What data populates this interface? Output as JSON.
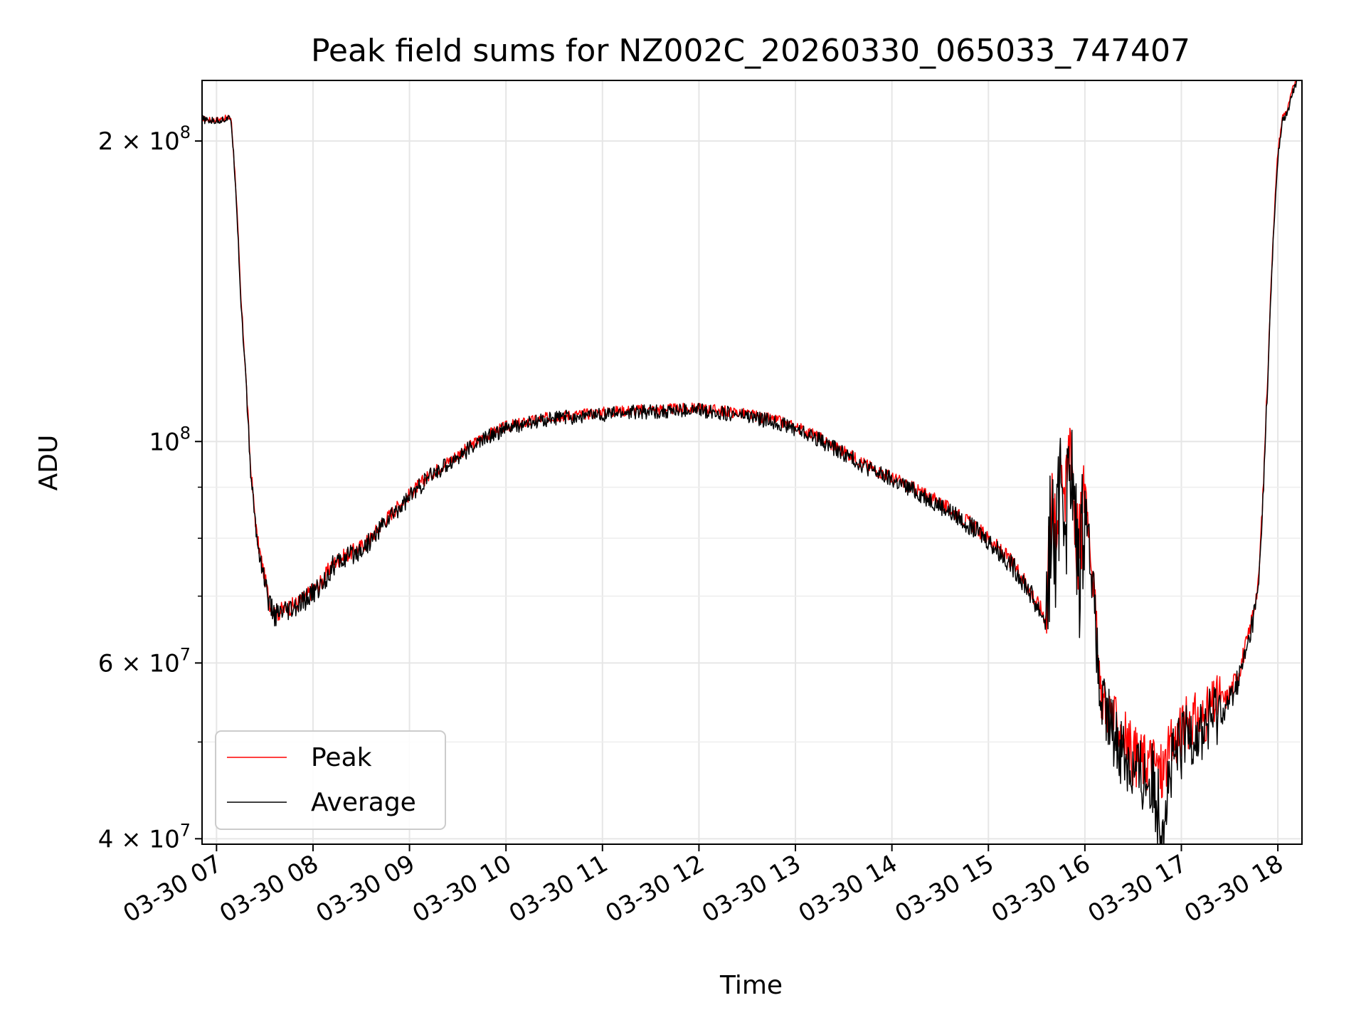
{
  "chart_data": {
    "type": "line",
    "title": "Peak field sums for NZ002C_20260330_065033_747407",
    "xlabel": "Time",
    "ylabel": "ADU",
    "yscale": "log",
    "ylim": [
      39500000,
      230000000
    ],
    "xlim_hours": [
      6.85,
      18.25
    ],
    "grid": true,
    "legend_position": "lower-left",
    "x_ticks": [
      {
        "value": 7,
        "label": "03-30 07"
      },
      {
        "value": 8,
        "label": "03-30 08"
      },
      {
        "value": 9,
        "label": "03-30 09"
      },
      {
        "value": 10,
        "label": "03-30 10"
      },
      {
        "value": 11,
        "label": "03-30 11"
      },
      {
        "value": 12,
        "label": "03-30 12"
      },
      {
        "value": 13,
        "label": "03-30 13"
      },
      {
        "value": 14,
        "label": "03-30 14"
      },
      {
        "value": 15,
        "label": "03-30 15"
      },
      {
        "value": 16,
        "label": "03-30 16"
      },
      {
        "value": 17,
        "label": "03-30 17"
      },
      {
        "value": 18,
        "label": "03-30 18"
      }
    ],
    "y_major_ticks": [
      {
        "value": 40000000,
        "base": "4 × 10",
        "exp": "7"
      },
      {
        "value": 60000000,
        "base": "6 × 10",
        "exp": "7"
      },
      {
        "value": 100000000,
        "base": "10",
        "exp": "8"
      },
      {
        "value": 200000000,
        "base": "2 × 10",
        "exp": "8"
      }
    ],
    "y_minor_ticks": [
      50000000,
      70000000,
      80000000,
      90000000
    ],
    "series": [
      {
        "name": "Peak",
        "color": "#ff0000",
        "jitter": 1400000,
        "x": [
          6.85,
          6.9,
          7.0,
          7.1,
          7.15,
          7.2,
          7.25,
          7.3,
          7.35,
          7.38,
          7.42,
          7.5,
          7.55,
          7.6,
          7.65,
          7.7,
          7.8,
          7.9,
          8.0,
          8.1,
          8.2,
          8.3,
          8.35,
          8.5,
          8.6,
          8.7,
          8.8,
          9.0,
          9.2,
          9.4,
          9.6,
          9.8,
          10.0,
          10.2,
          10.5,
          10.8,
          11.0,
          11.3,
          11.6,
          11.8,
          12.0,
          12.2,
          12.5,
          12.8,
          13.0,
          13.2,
          13.4,
          13.6,
          13.8,
          14.0,
          14.2,
          14.4,
          14.6,
          14.8,
          15.0,
          15.2,
          15.3,
          15.4,
          15.5,
          15.6,
          15.65,
          15.7,
          15.75,
          15.8,
          15.85,
          15.9,
          15.95,
          16.0,
          16.05,
          16.1,
          16.15,
          16.2,
          16.3,
          16.4,
          16.5,
          16.6,
          16.7,
          16.8,
          16.9,
          17.0,
          17.1,
          17.2,
          17.3,
          17.4,
          17.45,
          17.5,
          17.6,
          17.7,
          17.8,
          17.85,
          17.9,
          17.95,
          18.0,
          18.05,
          18.1,
          18.15,
          18.2
        ],
        "y": [
          211000000,
          210000000,
          210000000,
          211000000,
          211000000,
          180000000,
          140000000,
          118000000,
          95000000,
          88000000,
          80000000,
          73000000,
          69000000,
          67500000,
          67500000,
          68000000,
          68500000,
          69500000,
          71000000,
          72500000,
          75500000,
          76500000,
          77000000,
          78500000,
          80000000,
          82500000,
          84500000,
          88500000,
          92500000,
          95500000,
          98500000,
          101500000,
          103500000,
          104500000,
          106000000,
          106500000,
          107000000,
          107500000,
          107700000,
          107800000,
          108000000,
          107500000,
          106500000,
          105000000,
          103500000,
          101500000,
          99000000,
          96500000,
          94000000,
          92000000,
          90000000,
          88000000,
          85500000,
          83000000,
          80000000,
          76500000,
          74500000,
          72000000,
          69000000,
          66500000,
          88000000,
          78000000,
          101000000,
          86000000,
          104000000,
          82000000,
          78000000,
          92000000,
          80000000,
          70000000,
          57000000,
          55000000,
          52500000,
          51000000,
          48500000,
          48000000,
          48000000,
          46500000,
          49500000,
          51500000,
          53000000,
          52500000,
          54000000,
          55500000,
          55000000,
          56000000,
          59000000,
          64000000,
          72000000,
          90000000,
          120000000,
          160000000,
          195000000,
          212000000,
          215000000,
          225000000,
          232000000
        ]
      },
      {
        "name": "Average",
        "color": "#000000",
        "jitter": 1800000,
        "x": [
          6.85,
          6.9,
          7.0,
          7.1,
          7.15,
          7.2,
          7.25,
          7.3,
          7.35,
          7.38,
          7.42,
          7.5,
          7.55,
          7.6,
          7.65,
          7.7,
          7.8,
          7.9,
          8.0,
          8.1,
          8.2,
          8.3,
          8.35,
          8.5,
          8.6,
          8.7,
          8.8,
          9.0,
          9.2,
          9.4,
          9.6,
          9.8,
          10.0,
          10.2,
          10.5,
          10.8,
          11.0,
          11.3,
          11.6,
          11.8,
          12.0,
          12.2,
          12.5,
          12.8,
          13.0,
          13.2,
          13.4,
          13.6,
          13.8,
          14.0,
          14.2,
          14.4,
          14.6,
          14.8,
          15.0,
          15.2,
          15.3,
          15.4,
          15.5,
          15.6,
          15.65,
          15.7,
          15.75,
          15.8,
          15.85,
          15.9,
          15.95,
          16.0,
          16.05,
          16.1,
          16.15,
          16.2,
          16.3,
          16.4,
          16.5,
          16.6,
          16.7,
          16.8,
          16.9,
          17.0,
          17.1,
          17.2,
          17.3,
          17.4,
          17.45,
          17.5,
          17.6,
          17.7,
          17.8,
          17.85,
          17.9,
          17.95,
          18.0,
          18.05,
          18.1,
          18.15,
          18.2
        ],
        "y": [
          210500000,
          209500000,
          209500000,
          210500000,
          210500000,
          179000000,
          139000000,
          117000000,
          94000000,
          87500000,
          79500000,
          72500000,
          68500000,
          67000000,
          67000000,
          67200000,
          67800000,
          69000000,
          70500000,
          72000000,
          75000000,
          76000000,
          76500000,
          78000000,
          79500000,
          82000000,
          84000000,
          88000000,
          92000000,
          95000000,
          98000000,
          101000000,
          103000000,
          104000000,
          105500000,
          106000000,
          106500000,
          107000000,
          107200000,
          107300000,
          107500000,
          107000000,
          106000000,
          104500000,
          103000000,
          101000000,
          98500000,
          96000000,
          93500000,
          91500000,
          89500000,
          87500000,
          85000000,
          82500000,
          79500000,
          76000000,
          74000000,
          71500000,
          68500000,
          66000000,
          85000000,
          75000000,
          96000000,
          83000000,
          98000000,
          80000000,
          75000000,
          88000000,
          78000000,
          68000000,
          55500000,
          53500000,
          51000000,
          49000000,
          46500000,
          46000000,
          45500000,
          42000000,
          47000000,
          49500000,
          51500000,
          51000000,
          52500000,
          54000000,
          53500000,
          55000000,
          58000000,
          63000000,
          71000000,
          89000000,
          118000000,
          157000000,
          192000000,
          210000000,
          213000000,
          223000000,
          230000000
        ]
      }
    ]
  }
}
